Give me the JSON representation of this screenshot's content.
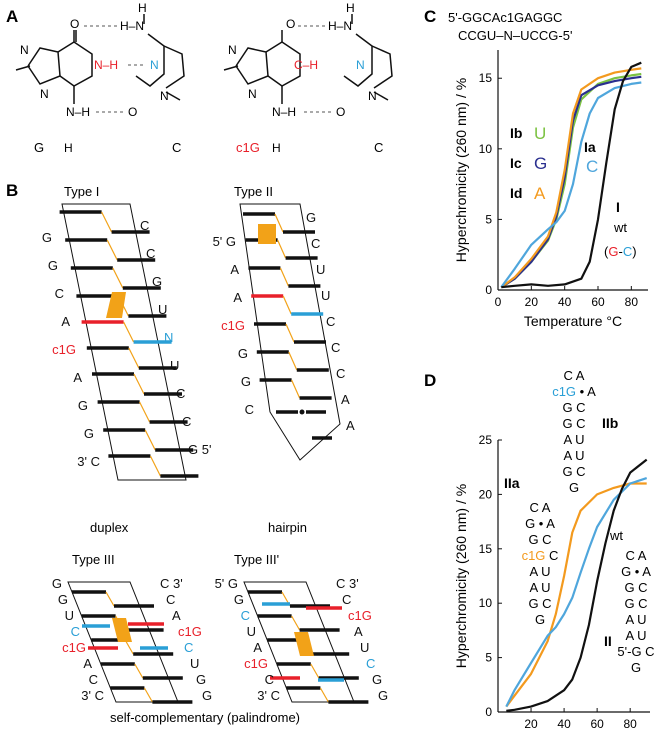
{
  "colors": {
    "black": "#111111",
    "red": "#e8202a",
    "cyan": "#2a9fd6",
    "green": "#7cc242",
    "navy": "#2a2f8f",
    "orange": "#f39a1e",
    "steel": "#4fa6dc",
    "gold": "#f2a218",
    "gray": "#9a9a9a"
  },
  "panelA": {
    "label": "A",
    "pair1": {
      "left": "G",
      "right": "C"
    },
    "pair2": {
      "left": "c1G",
      "right": "C"
    },
    "atoms": {
      "N": "N",
      "H": "H",
      "O": "O",
      "C": "C",
      "NH": "N–H",
      "CH": "C–H",
      "HN": "H–N",
      "OH": "O"
    }
  },
  "panelB": {
    "label": "B",
    "type1": {
      "title": "Type I",
      "caption": "duplex",
      "left": [
        "G",
        "G",
        "C",
        "A",
        "c1G",
        "A",
        "G",
        "G",
        "3' C"
      ],
      "right": [
        "C",
        "C",
        "G",
        "U",
        "N",
        "U",
        "C",
        "C",
        "G 5'"
      ]
    },
    "type2": {
      "title": "Type II",
      "caption": "hairpin",
      "left": [
        "5' G",
        "A",
        "A",
        "c1G",
        "G",
        "G",
        "C"
      ],
      "right": [
        "G",
        "C",
        "U",
        "U",
        "C",
        "C",
        "C",
        "A",
        "A"
      ]
    },
    "type3": {
      "title": "Type III",
      "left": [
        "G",
        "G",
        "U",
        "C",
        "c1G",
        "A",
        "C",
        "3' C"
      ],
      "right": [
        "C 3'",
        "C",
        "A",
        "c1G",
        "C",
        "U",
        "G",
        "G"
      ]
    },
    "type3p": {
      "title": "Type III'",
      "left": [
        "5' G",
        "G",
        "C",
        "U",
        "A",
        "c1G",
        "C",
        "3' C"
      ],
      "right": [
        "C 3'",
        "C",
        "c1G",
        "A",
        "U",
        "C",
        "G",
        "G"
      ]
    },
    "caption_bottom": "self-complementary (palindrome)"
  },
  "panelC": {
    "label": "C",
    "seq_top": "5'-GGCAc1GAGGC",
    "seq_bottom": "CCGU–N–UCCG-5'",
    "labels": {
      "Ib": "Ib",
      "Ib_n": "U",
      "Ic": "Ic",
      "Ic_n": "G",
      "Id": "Id",
      "Id_n": "A",
      "Ia": "Ia",
      "Ia_n": "C",
      "I": "I",
      "wt": "wt",
      "wt_pair": "(G-C)"
    }
  },
  "panelD": {
    "label": "D",
    "labels": {
      "IIb": "IIb",
      "IIa": "IIa",
      "wt": "wt",
      "II": "II"
    },
    "hp_IIb": [
      "C A",
      "c1G • A",
      "G C",
      "G C",
      "A U",
      "A U",
      "G C",
      "G"
    ],
    "hp_IIa": [
      "C A",
      "G • A",
      "G C",
      "c1G C",
      "A U",
      "A U",
      "G C",
      "G"
    ],
    "hp_wt": [
      "C A",
      "G • A",
      "G C",
      "G C",
      "A U",
      "A U",
      "5'-G C",
      "G"
    ]
  },
  "chart_data": [
    {
      "type": "line",
      "panel": "C",
      "xlabel": "Temperature °C",
      "ylabel": "Hyperchromicity (260 nm) / %",
      "xlim": [
        0,
        90
      ],
      "ylim": [
        0,
        17
      ],
      "xticks": [
        0,
        20,
        40,
        60,
        80
      ],
      "yticks": [
        0,
        5,
        10,
        15
      ],
      "series": [
        {
          "name": "Ib",
          "color": "#7cc242",
          "x": [
            2,
            10,
            20,
            30,
            35,
            40,
            45,
            50,
            60,
            70,
            80,
            86
          ],
          "y": [
            0.2,
            0.8,
            2.0,
            3.5,
            5.0,
            7.5,
            11.5,
            13.5,
            14.6,
            15.0,
            15.2,
            15.3
          ]
        },
        {
          "name": "Ic",
          "color": "#2a2f8f",
          "x": [
            2,
            10,
            20,
            30,
            35,
            40,
            45,
            50,
            60,
            70,
            80,
            86
          ],
          "y": [
            0.2,
            0.8,
            2.0,
            3.6,
            5.2,
            8.0,
            12.0,
            13.8,
            14.5,
            14.8,
            15.0,
            15.1
          ]
        },
        {
          "name": "Id",
          "color": "#f39a1e",
          "x": [
            2,
            10,
            20,
            30,
            35,
            40,
            45,
            50,
            60,
            70,
            80,
            86
          ],
          "y": [
            0.2,
            0.9,
            2.2,
            3.8,
            5.5,
            8.5,
            12.5,
            14.2,
            15.0,
            15.4,
            15.6,
            15.7
          ]
        },
        {
          "name": "Ia",
          "color": "#4fa6dc",
          "x": [
            2,
            10,
            20,
            30,
            35,
            40,
            45,
            50,
            55,
            60,
            70,
            80,
            86
          ],
          "y": [
            0.2,
            1.5,
            3.2,
            4.3,
            4.8,
            5.6,
            7.5,
            10.5,
            12.5,
            13.6,
            14.3,
            14.6,
            14.7
          ]
        },
        {
          "name": "I",
          "color": "#111111",
          "x": [
            2,
            10,
            20,
            30,
            40,
            50,
            55,
            60,
            65,
            70,
            75,
            80,
            86
          ],
          "y": [
            0.2,
            0.3,
            0.4,
            0.3,
            0.4,
            0.8,
            2.0,
            5.0,
            9.0,
            12.8,
            14.8,
            15.8,
            16.1
          ]
        }
      ]
    },
    {
      "type": "line",
      "panel": "D",
      "xlabel": "Temperature °C",
      "ylabel": "Hyperchromicity (260 nm) / %",
      "xlim": [
        0,
        92
      ],
      "ylim": [
        0,
        25
      ],
      "xticks": [
        20,
        40,
        60,
        80
      ],
      "yticks": [
        0,
        5,
        10,
        15,
        20,
        25
      ],
      "series": [
        {
          "name": "IIa",
          "color": "#f39a1e",
          "x": [
            5,
            10,
            20,
            30,
            35,
            40,
            45,
            50,
            60,
            70,
            80,
            90
          ],
          "y": [
            0.5,
            1.5,
            3.5,
            6.5,
            9.0,
            12.5,
            16.5,
            18.5,
            20.0,
            20.6,
            21.0,
            21.0
          ]
        },
        {
          "name": "IIb",
          "color": "#4fa6dc",
          "x": [
            5,
            10,
            20,
            30,
            35,
            40,
            45,
            50,
            55,
            60,
            70,
            80,
            90
          ],
          "y": [
            0.5,
            2.0,
            4.5,
            7.0,
            7.8,
            9.0,
            10.5,
            12.8,
            15.0,
            17.0,
            19.5,
            21.0,
            21.5
          ]
        },
        {
          "name": "II",
          "color": "#111111",
          "x": [
            5,
            10,
            20,
            30,
            40,
            45,
            50,
            55,
            60,
            65,
            70,
            75,
            80,
            90
          ],
          "y": [
            0.1,
            0.2,
            0.5,
            1.0,
            2.0,
            3.0,
            5.0,
            8.0,
            12.0,
            15.5,
            18.5,
            20.5,
            22.0,
            23.2
          ]
        }
      ]
    }
  ]
}
